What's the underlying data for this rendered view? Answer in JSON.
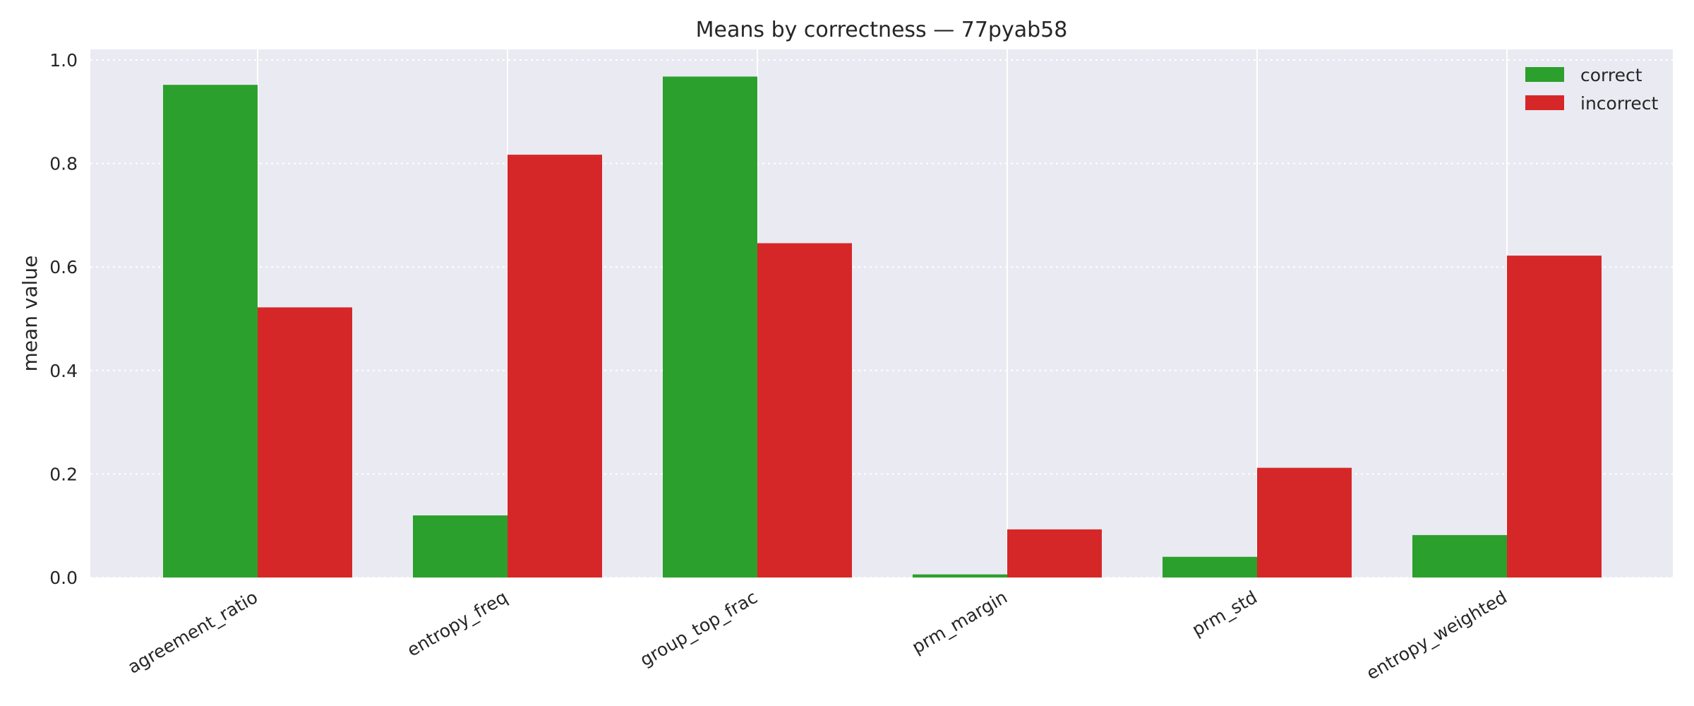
{
  "chart_data": {
    "type": "bar",
    "title": "Means by correctness — 77pyab58",
    "xlabel": "",
    "ylabel": "mean value",
    "ylim": [
      0,
      1.02
    ],
    "yticks": [
      "0.0",
      "0.2",
      "0.4",
      "0.6",
      "0.8",
      "1.0"
    ],
    "ytick_values": [
      0.0,
      0.2,
      0.4,
      0.6,
      0.8,
      1.0
    ],
    "grid": true,
    "legend_position": "top-right",
    "categories": [
      "agreement_ratio",
      "entropy_freq",
      "group_top_frac",
      "prm_margin",
      "prm_std",
      "entropy_weighted"
    ],
    "series": [
      {
        "name": "correct",
        "color": "#2ca02c",
        "values": [
          0.952,
          0.12,
          0.968,
          0.006,
          0.04,
          0.082
        ]
      },
      {
        "name": "incorrect",
        "color": "#d62728",
        "values": [
          0.522,
          0.817,
          0.646,
          0.093,
          0.212,
          0.622
        ]
      }
    ],
    "plot_background": "#eaeaf2",
    "grid_color": "#ffffff"
  }
}
